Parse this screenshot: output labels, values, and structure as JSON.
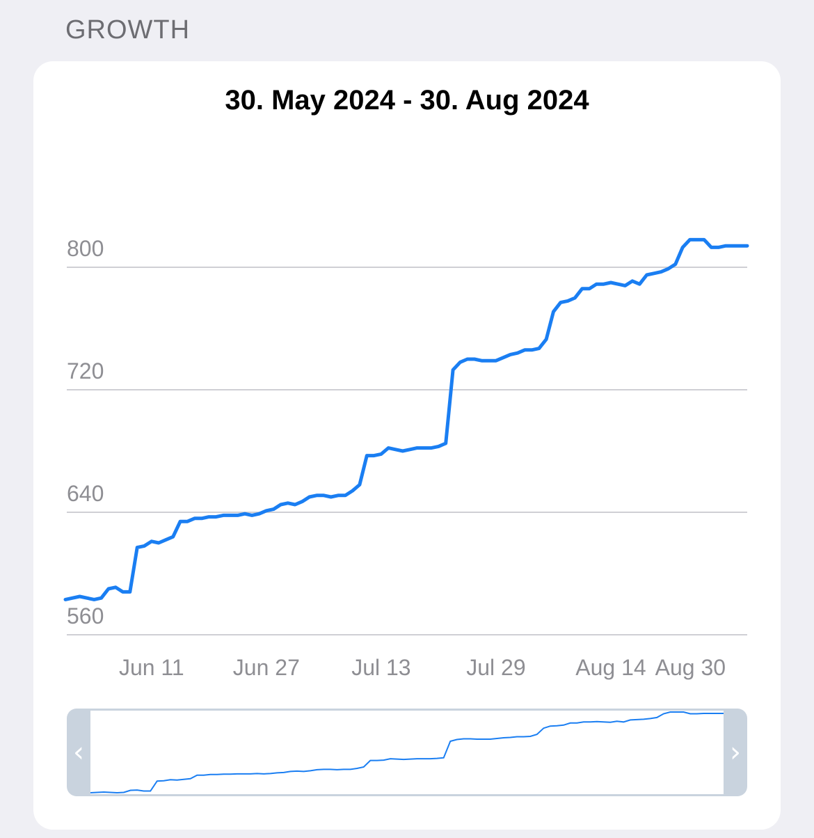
{
  "section_header": "GROWTH",
  "colors": {
    "line": "#1a7ef2",
    "grid": "#cfcfd4",
    "axis_text": "#8e8e93",
    "navigator_frame": "#c9d3de"
  },
  "navigator": {
    "left_handle_glyph": "‹",
    "right_handle_glyph": "›"
  },
  "chart_data": {
    "type": "line",
    "title": "30. May 2024 - 30. Aug 2024",
    "xlabel": "",
    "ylabel": "",
    "x_start": "2024-05-30",
    "x_end": "2024-09-02",
    "ylim": [
      555,
      820
    ],
    "y_ticks": [
      560,
      640,
      720,
      800
    ],
    "x_ticks": [
      {
        "date": "2024-06-11",
        "label": "Jun 11"
      },
      {
        "date": "2024-06-27",
        "label": "Jun 27"
      },
      {
        "date": "2024-07-13",
        "label": "Jul 13"
      },
      {
        "date": "2024-07-29",
        "label": "Jul 29"
      },
      {
        "date": "2024-08-14",
        "label": "Aug 14"
      },
      {
        "date": "2024-08-30",
        "label": "Aug 30"
      }
    ],
    "grid": true,
    "series": [
      {
        "x": [
          "2024-05-30",
          "2024-05-31",
          "2024-06-01",
          "2024-06-02",
          "2024-06-03",
          "2024-06-04",
          "2024-06-05",
          "2024-06-06",
          "2024-06-07",
          "2024-06-08",
          "2024-06-09",
          "2024-06-10",
          "2024-06-11",
          "2024-06-12",
          "2024-06-13",
          "2024-06-14",
          "2024-06-15",
          "2024-06-16",
          "2024-06-17",
          "2024-06-18",
          "2024-06-19",
          "2024-06-20",
          "2024-06-21",
          "2024-06-22",
          "2024-06-23",
          "2024-06-24",
          "2024-06-25",
          "2024-06-26",
          "2024-06-27",
          "2024-06-28",
          "2024-06-29",
          "2024-06-30",
          "2024-07-01",
          "2024-07-02",
          "2024-07-03",
          "2024-07-04",
          "2024-07-05",
          "2024-07-06",
          "2024-07-07",
          "2024-07-08",
          "2024-07-09",
          "2024-07-10",
          "2024-07-11",
          "2024-07-12",
          "2024-07-13",
          "2024-07-14",
          "2024-07-15",
          "2024-07-16",
          "2024-07-17",
          "2024-07-18",
          "2024-07-19",
          "2024-07-20",
          "2024-07-21",
          "2024-07-22",
          "2024-07-23",
          "2024-07-24",
          "2024-07-25",
          "2024-07-26",
          "2024-07-27",
          "2024-07-28",
          "2024-07-29",
          "2024-07-30",
          "2024-07-31",
          "2024-08-01",
          "2024-08-02",
          "2024-08-03",
          "2024-08-04",
          "2024-08-05",
          "2024-08-06",
          "2024-08-07",
          "2024-08-08",
          "2024-08-09",
          "2024-08-10",
          "2024-08-11",
          "2024-08-12",
          "2024-08-13",
          "2024-08-14",
          "2024-08-15",
          "2024-08-16",
          "2024-08-17",
          "2024-08-18",
          "2024-08-19",
          "2024-08-20",
          "2024-08-21",
          "2024-08-22",
          "2024-08-23",
          "2024-08-24",
          "2024-08-25",
          "2024-08-26",
          "2024-08-27",
          "2024-08-28",
          "2024-08-29",
          "2024-08-30",
          "2024-08-31",
          "2024-09-01",
          "2024-09-02"
        ],
        "y": [
          583,
          584,
          585,
          584,
          583,
          584,
          590,
          591,
          588,
          588,
          617,
          618,
          621,
          620,
          622,
          624,
          634,
          634,
          636,
          636,
          637,
          637,
          638,
          638,
          638,
          639,
          638,
          639,
          641,
          642,
          645,
          646,
          645,
          647,
          650,
          651,
          651,
          650,
          651,
          651,
          654,
          658,
          677,
          677,
          678,
          682,
          681,
          680,
          681,
          682,
          682,
          682,
          683,
          685,
          733,
          738,
          740,
          740,
          739,
          739,
          739,
          741,
          743,
          744,
          746,
          746,
          747,
          753,
          771,
          777,
          778,
          780,
          786,
          786,
          789,
          789,
          790,
          789,
          788,
          791,
          789,
          795,
          796,
          797,
          799,
          802,
          813,
          818,
          818,
          818,
          813,
          813,
          814,
          814,
          814,
          814
        ]
      }
    ]
  }
}
